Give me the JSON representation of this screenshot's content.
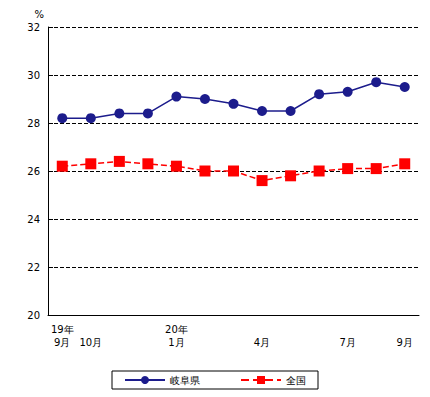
{
  "chart_data": {
    "type": "line",
    "ylabel": "%",
    "categories": [
      "19年\n9月",
      "10月",
      null,
      null,
      "20年\n1月",
      null,
      null,
      "4月",
      null,
      null,
      "7月",
      null,
      "9月"
    ],
    "series": [
      {
        "name": "岐阜県",
        "color": "#1c1c8c",
        "marker": "circle",
        "line_style": "solid",
        "values": [
          28.2,
          28.2,
          28.4,
          28.4,
          29.1,
          29.0,
          28.8,
          28.5,
          28.5,
          29.2,
          29.3,
          29.7,
          29.5
        ]
      },
      {
        "name": "全国",
        "color": "#ff0000",
        "marker": "square",
        "line_style": "dashed",
        "values": [
          26.2,
          26.3,
          26.4,
          26.3,
          26.2,
          26.0,
          26.0,
          25.6,
          25.8,
          26.0,
          26.1,
          26.1,
          26.3
        ]
      }
    ],
    "ylim": [
      20,
      32
    ],
    "yticks": [
      20,
      22,
      24,
      26,
      28,
      30,
      32
    ],
    "grid": true,
    "legend": "bottom"
  }
}
